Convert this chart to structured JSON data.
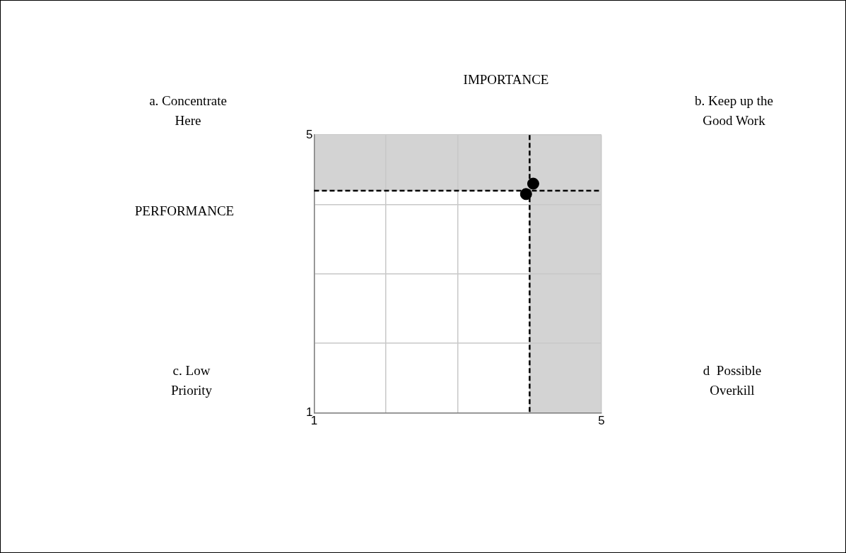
{
  "chart_data": {
    "type": "scatter",
    "series": [
      {
        "color": "#000000",
        "x": [
          3.95,
          4.05
        ],
        "values": [
          4.15,
          4.3
        ]
      }
    ],
    "xlim": [
      1,
      5
    ],
    "ylim": [
      1,
      5
    ],
    "xticks": [
      1,
      {
        "value": 2,
        "label": null
      },
      {
        "value": 3,
        "label": null
      },
      {
        "value": 4,
        "label": null
      },
      5
    ],
    "yticks": [
      1,
      {
        "value": 2,
        "label": null
      },
      {
        "value": 3,
        "label": null
      },
      {
        "value": 4,
        "label": null
      },
      5
    ],
    "bands": [
      {
        "axis": "y",
        "from": 4.2,
        "to": 5,
        "color": "#d3d3d3"
      },
      {
        "axis": "x",
        "from": 4,
        "to": 5,
        "color": "#d3d3d3"
      }
    ],
    "ref_lines": [
      {
        "axis": "x",
        "value": 4,
        "color": "#000000",
        "line_style": "dashed"
      },
      {
        "axis": "y",
        "value": 4.2,
        "color": "#000000",
        "line_style": "dashed"
      }
    ],
    "annotations": [
      "IMPORTANCE",
      "PERFORMANCE",
      "a. Concentrate Here",
      "b. Keep up the Good Work",
      "c. Low Priority",
      "d  Possible Overkill"
    ],
    "grid": true,
    "legend": false,
    "marker": "circle"
  }
}
